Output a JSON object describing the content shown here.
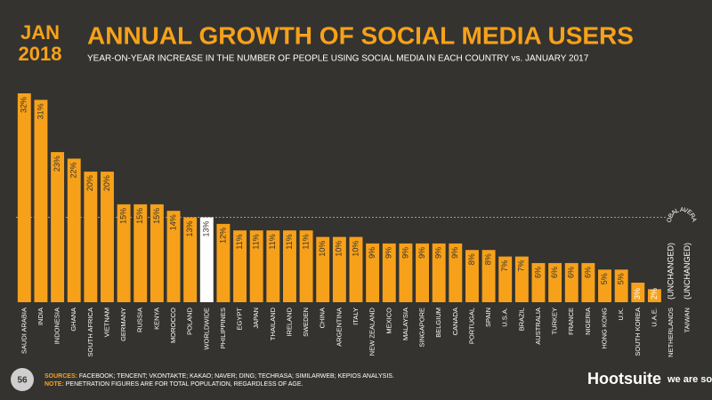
{
  "header": {
    "month": "JAN",
    "year": "2018"
  },
  "chart_data": {
    "type": "bar",
    "title": "ANNUAL GROWTH OF SOCIAL MEDIA USERS",
    "subtitle": "YEAR-ON-YEAR INCREASE IN THE NUMBER OF PEOPLE USING SOCIAL MEDIA IN EACH COUNTRY vs. JANUARY 2017",
    "categories": [
      "SAUDI ARABIA",
      "INDIA",
      "INDONESIA",
      "GHANA",
      "SOUTH AFRICA",
      "VIETNAM",
      "GERMANY",
      "RUSSIA",
      "KENYA",
      "MOROCCO",
      "POLAND",
      "WORLDWIDE",
      "PHILIPPINES",
      "EGYPT",
      "JAPAN",
      "THAILAND",
      "IRELAND",
      "SWEDEN",
      "CHINA",
      "ARGENTINA",
      "ITALY",
      "NEW ZEALAND",
      "MEXICO",
      "MALAYSIA",
      "SINGAPORE",
      "BELGIUM",
      "CANADA",
      "PORTUGAL",
      "SPAIN",
      "U.S.A.",
      "BRAZIL",
      "AUSTRALIA",
      "TURKEY",
      "FRANCE",
      "NIGERIA",
      "HONG KONG",
      "U.K.",
      "SOUTH KOREA",
      "U.A.E.",
      "NETHERLANDS",
      "TAIWAN"
    ],
    "values": [
      32,
      31,
      23,
      22,
      20,
      20,
      15,
      15,
      15,
      14,
      13,
      13,
      12,
      11,
      11,
      11,
      11,
      11,
      10,
      10,
      10,
      9,
      9,
      9,
      9,
      9,
      9,
      8,
      8,
      7,
      7,
      6,
      6,
      6,
      6,
      5,
      5,
      3,
      2,
      0,
      0
    ],
    "value_labels": [
      "32%",
      "31%",
      "23%",
      "22%",
      "20%",
      "20%",
      "15%",
      "15%",
      "15%",
      "14%",
      "13%",
      "13%",
      "12%",
      "11%",
      "11%",
      "11%",
      "11%",
      "11%",
      "10%",
      "10%",
      "10%",
      "9%",
      "9%",
      "9%",
      "9%",
      "9%",
      "9%",
      "8%",
      "8%",
      "7%",
      "7%",
      "6%",
      "6%",
      "6%",
      "6%",
      "5%",
      "5%",
      "3%",
      "2%",
      "(UNCHANGED)",
      "(UNCHANGED)"
    ],
    "color": "#f7a11a",
    "highlight": {
      "index": 11,
      "color": "#ffffff"
    },
    "average_line": {
      "label": "GLOBAL AVERAGE",
      "value": 13
    }
  },
  "footer": {
    "page": "56",
    "sources_label": "SOURCES:",
    "sources": "FACEBOOK; TENCENT; VKONTAKTE; KAKAO; NAVER; DING; TECHRASA; SIMILARWEB; KEPIOS ANALYSIS.",
    "note_label": "NOTE:",
    "note": "PENETRATION FIGURES ARE FOR TOTAL POPULATION, REGARDLESS OF AGE.",
    "brand1": "Hootsuite",
    "brand2": "we are social"
  }
}
